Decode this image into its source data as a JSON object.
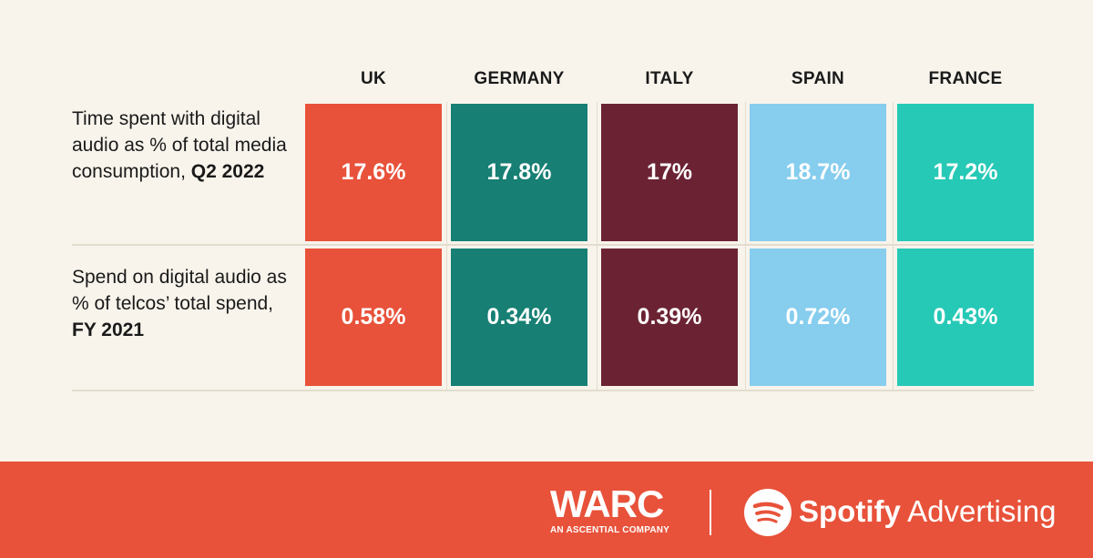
{
  "chart_data": {
    "type": "table",
    "columns": [
      "UK",
      "GERMANY",
      "ITALY",
      "SPAIN",
      "FRANCE"
    ],
    "column_colors": [
      "#e8523a",
      "#177f74",
      "#6b2334",
      "#86cdee",
      "#26c9b6"
    ],
    "rows": [
      {
        "label_parts": [
          {
            "text": "Time spent with digital audio as % of total media consumption, ",
            "bold": false
          },
          {
            "text": "Q2 2022",
            "bold": true
          }
        ],
        "values": [
          17.6,
          17.8,
          17,
          18.7,
          17.2
        ],
        "display": [
          "17.6%",
          "17.8%",
          "17%",
          "18.7%",
          "17.2%"
        ]
      },
      {
        "label_parts": [
          {
            "text": "Spend on digital audio as % of telcos’ total spend, ",
            "bold": false
          },
          {
            "text": "FY 2021",
            "bold": true
          }
        ],
        "values": [
          0.58,
          0.34,
          0.39,
          0.72,
          0.43
        ],
        "display": [
          "0.58%",
          "0.34%",
          "0.39%",
          "0.72%",
          "0.43%"
        ]
      }
    ]
  },
  "footer": {
    "brand_1": "WARC",
    "brand_1_sub": "AN ASCENTIAL COMPANY",
    "brand_2_bold": "Spotify",
    "brand_2_rest": " Advertising",
    "brand_2_icon": "spotify-icon",
    "background_color": "#e8523a"
  }
}
